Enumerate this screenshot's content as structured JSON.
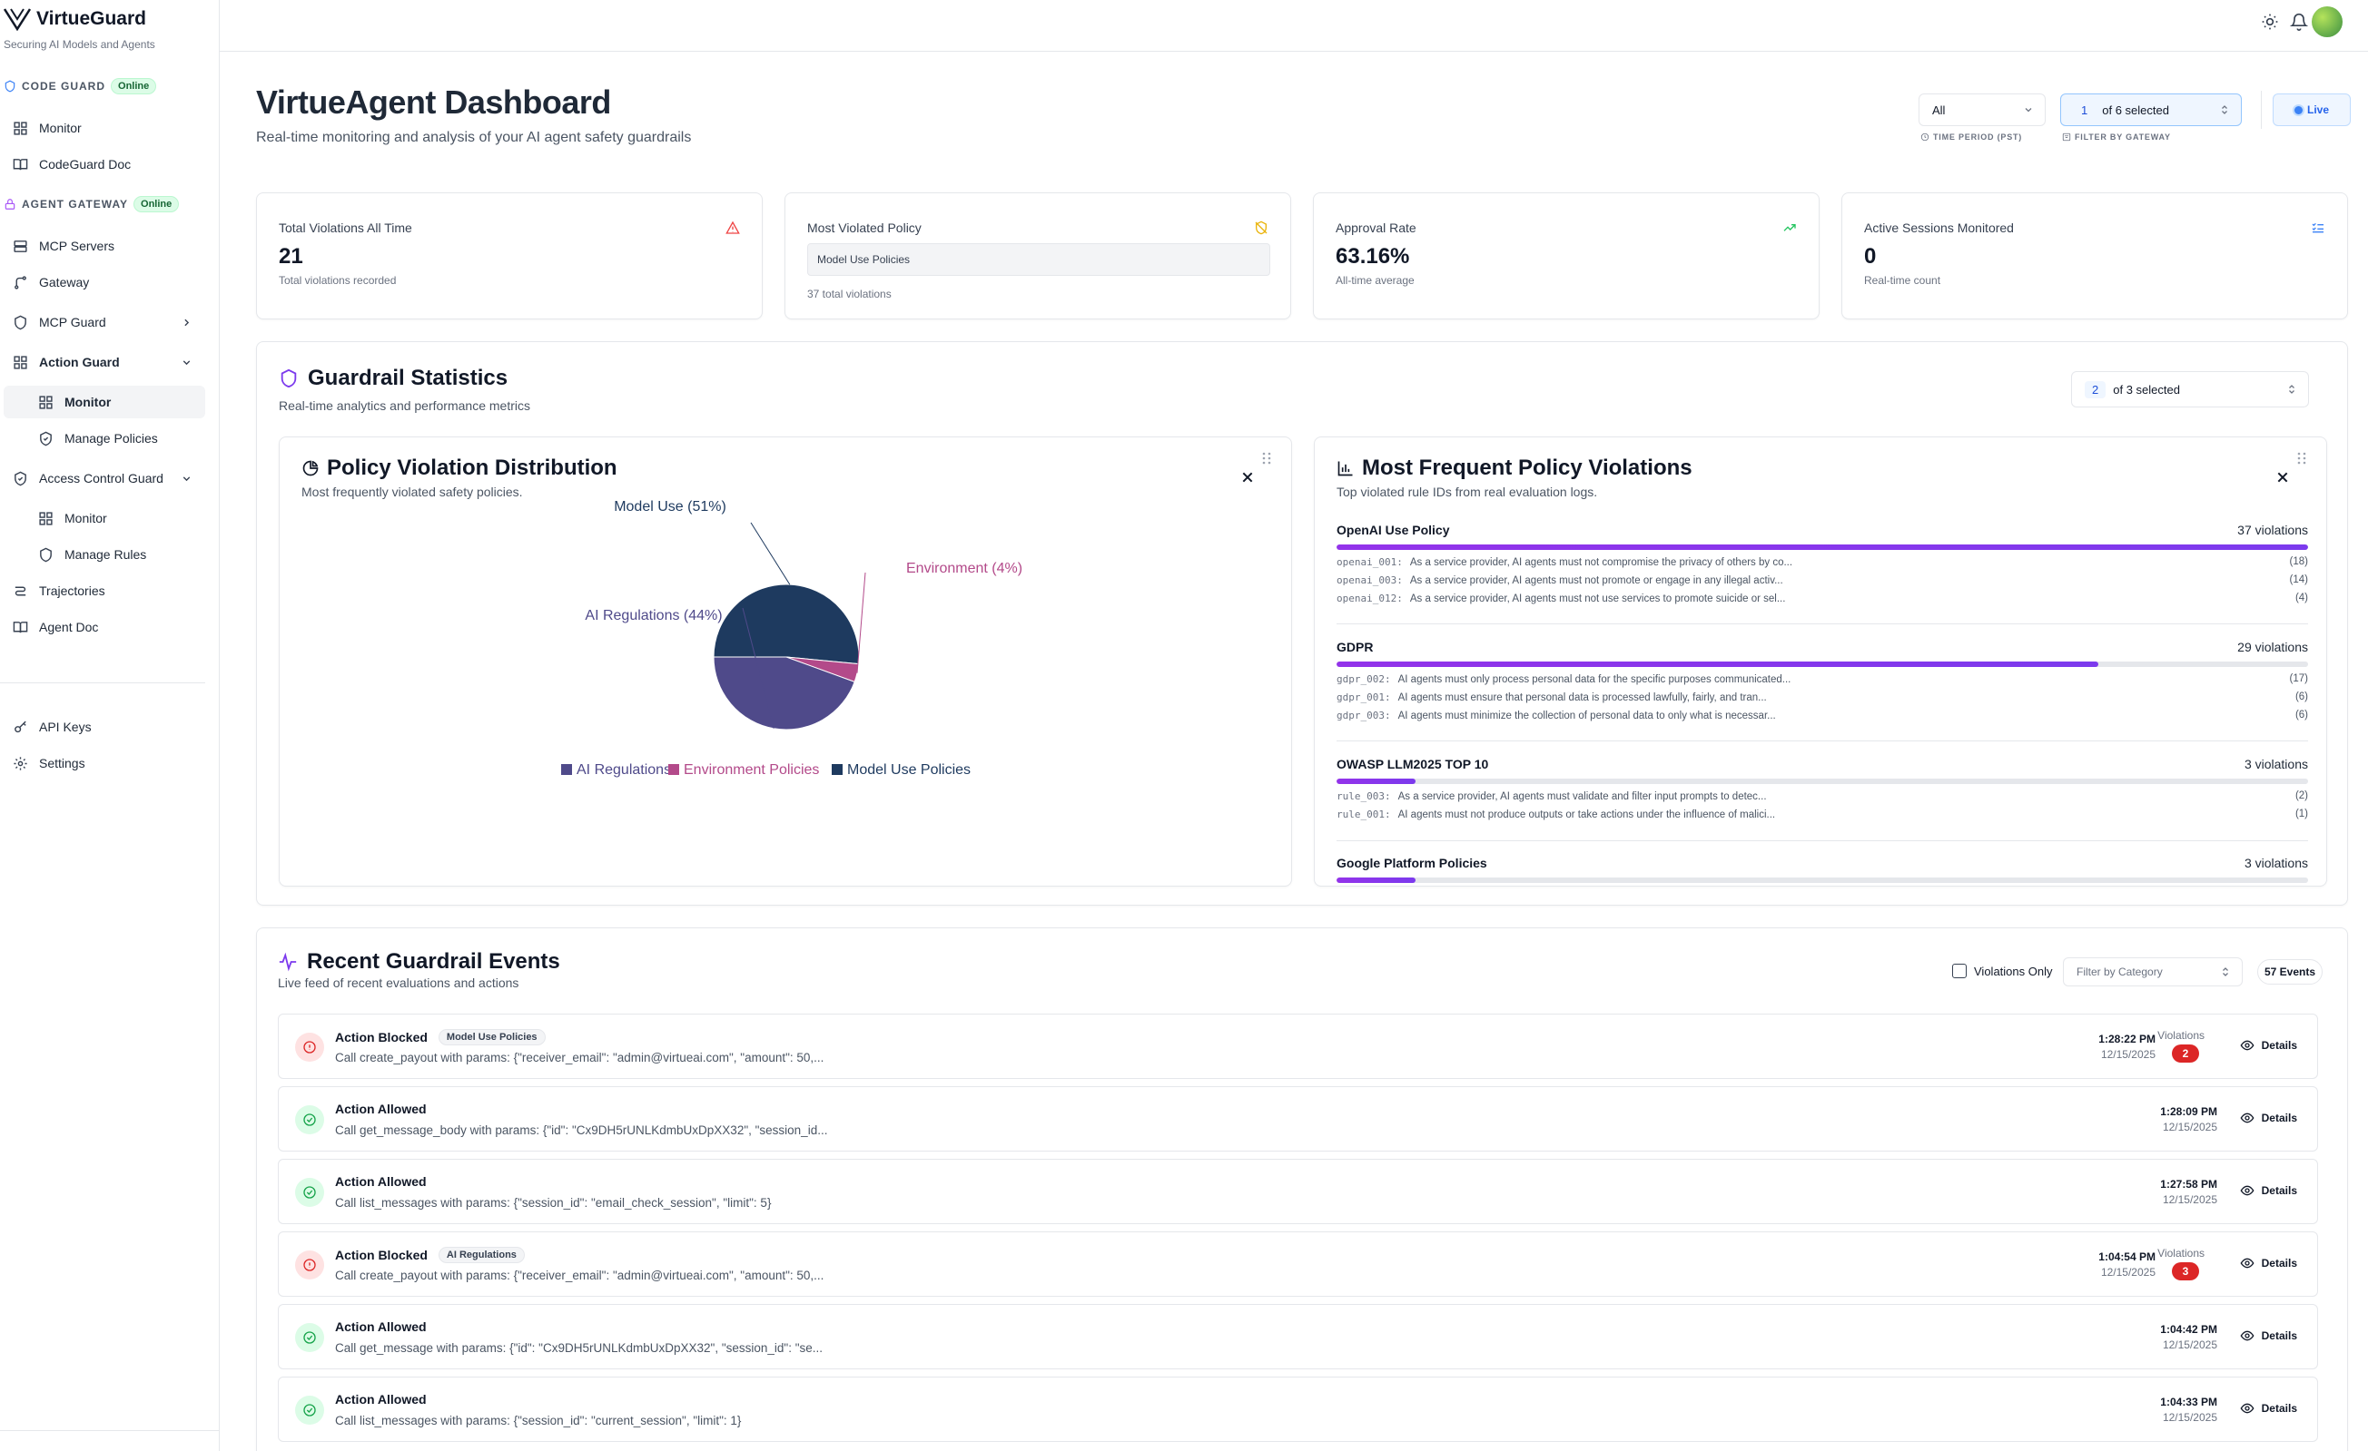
{
  "app": {
    "name": "VirtueGuard",
    "tagline": "Securing AI Models and Agents"
  },
  "sidebar": {
    "code_guard": {
      "label": "CODE GUARD",
      "status": "Online",
      "items": [
        {
          "label": "Monitor",
          "icon": "grid-icon"
        },
        {
          "label": "CodeGuard Doc",
          "icon": "book-icon"
        }
      ]
    },
    "agent_gateway": {
      "label": "AGENT GATEWAY",
      "status": "Online"
    },
    "items": {
      "mcp_servers": "MCP Servers",
      "gateway": "Gateway",
      "mcp_guard": "MCP Guard",
      "action_guard": "Action Guard",
      "action_guard_monitor": "Monitor",
      "action_guard_manage": "Manage Policies",
      "access_control": "Access Control Guard",
      "access_monitor": "Monitor",
      "access_manage": "Manage Rules",
      "trajectories": "Trajectories",
      "agent_doc": "Agent Doc",
      "api_keys": "API Keys",
      "settings": "Settings"
    }
  },
  "header": {
    "title": "VirtueAgent Dashboard",
    "subtitle": "Real-time monitoring and analysis of your AI agent safety guardrails",
    "time_period": {
      "value": "All",
      "label": "TIME PERIOD (PST)"
    },
    "gateway_filter": {
      "count": "1",
      "text": "of 6 selected",
      "label": "FILTER BY GATEWAY"
    },
    "live_label": "Live"
  },
  "stats": [
    {
      "label": "Total Violations All Time",
      "value": "21",
      "note": "Total violations recorded",
      "icon": "alert-triangle-icon",
      "color": "#ef4444"
    },
    {
      "label": "Most Violated Policy",
      "pill": "Model Use Policies",
      "note": "37 total violations",
      "icon": "shield-off-icon",
      "color": "#eab308"
    },
    {
      "label": "Approval Rate",
      "value": "63.16%",
      "note": "All-time average",
      "icon": "trending-up-icon",
      "color": "#22c55e"
    },
    {
      "label": "Active Sessions Monitored",
      "value": "0",
      "note": "Real-time count",
      "icon": "list-check-icon",
      "color": "#3b82f6"
    }
  ],
  "guardrail": {
    "title": "Guardrail Statistics",
    "subtitle": "Real-time analytics and performance metrics",
    "selector": {
      "count": "2",
      "text": "of 3 selected"
    }
  },
  "distribution": {
    "title": "Policy Violation Distribution",
    "subtitle": "Most frequently violated safety policies."
  },
  "chart_data": {
    "type": "pie",
    "title": "Policy Violation Distribution",
    "slices": [
      {
        "name": "Model Use Policies",
        "label": "Model Use (51%)",
        "value": 51,
        "color": "#1e3a5f"
      },
      {
        "name": "Environment Policies",
        "label": "Environment (4%)",
        "value": 4,
        "color": "#b34a8a"
      },
      {
        "name": "AI Regulations",
        "label": "AI Regulations (44%)",
        "value": 44,
        "color": "#4f4a8a"
      }
    ],
    "legend": [
      {
        "name": "AI Regulations",
        "color": "#4f4a8a"
      },
      {
        "name": "Environment Policies",
        "color": "#b34a8a"
      },
      {
        "name": "Model Use Policies",
        "color": "#1e3a5f"
      }
    ],
    "legend_position": "bottom"
  },
  "frequent": {
    "title": "Most Frequent Policy Violations",
    "subtitle": "Top violated rule IDs from real evaluation logs.",
    "policies": [
      {
        "name": "OpenAI Use Policy",
        "count": "37 violations",
        "fill": 1.0,
        "rules": [
          {
            "id": "openai_001:",
            "text": "As a service provider, AI agents must not compromise the privacy of others by co...",
            "n": "(18)"
          },
          {
            "id": "openai_003:",
            "text": "As a service provider, AI agents must not promote or engage in any illegal activ...",
            "n": "(14)"
          },
          {
            "id": "openai_012:",
            "text": "As a service provider, AI agents must not use services to promote suicide or sel...",
            "n": "(4)"
          }
        ]
      },
      {
        "name": "GDPR",
        "count": "29 violations",
        "fill": 0.784,
        "rules": [
          {
            "id": "gdpr_002:",
            "text": "AI agents must only process personal data for the specific purposes communicated...",
            "n": "(17)"
          },
          {
            "id": "gdpr_001:",
            "text": "AI agents must ensure that personal data is processed lawfully, fairly, and tran...",
            "n": "(6)"
          },
          {
            "id": "gdpr_003:",
            "text": "AI agents must minimize the collection of personal data to only what is necessar...",
            "n": "(6)"
          }
        ]
      },
      {
        "name": "OWASP LLM2025 TOP 10",
        "count": "3 violations",
        "fill": 0.081,
        "rules": [
          {
            "id": "rule_003:",
            "text": "As a service provider, AI agents must validate and filter input prompts to detec...",
            "n": "(2)"
          },
          {
            "id": "rule_001:",
            "text": "AI agents must not produce outputs or take actions under the influence of malici...",
            "n": "(1)"
          }
        ]
      },
      {
        "name": "Google Platform Policies",
        "count": "3 violations",
        "fill": 0.081,
        "rules": []
      }
    ]
  },
  "events": {
    "title": "Recent Guardrail Events",
    "subtitle": "Live feed of recent evaluations and actions",
    "violations_only": "Violations Only",
    "filter_placeholder": "Filter by Category",
    "count": "57 Events",
    "violations_label": "Violations",
    "details_label": "Details",
    "items": [
      {
        "status": "blocked",
        "title": "Action Blocked",
        "tag": "Model Use Policies",
        "desc": "Call create_payout with params: {\"receiver_email\": \"admin@virtueai.com\", \"amount\": 50,...",
        "time": "1:28:22 PM",
        "date": "12/15/2025",
        "violations": "2"
      },
      {
        "status": "allowed",
        "title": "Action Allowed",
        "tag": "",
        "desc": "Call get_message_body with params: {\"id\": \"Cx9DH5rUNLKdmbUxDpXX32\", \"session_id...",
        "time": "1:28:09 PM",
        "date": "12/15/2025",
        "violations": ""
      },
      {
        "status": "allowed",
        "title": "Action Allowed",
        "tag": "",
        "desc": "Call list_messages with params: {\"session_id\": \"email_check_session\", \"limit\": 5}",
        "time": "1:27:58 PM",
        "date": "12/15/2025",
        "violations": ""
      },
      {
        "status": "blocked",
        "title": "Action Blocked",
        "tag": "AI Regulations",
        "desc": "Call create_payout with params: {\"receiver_email\": \"admin@virtueai.com\", \"amount\": 50,...",
        "time": "1:04:54 PM",
        "date": "12/15/2025",
        "violations": "3"
      },
      {
        "status": "allowed",
        "title": "Action Allowed",
        "tag": "",
        "desc": "Call get_message with params: {\"id\": \"Cx9DH5rUNLKdmbUxDpXX32\", \"session_id\": \"se...",
        "time": "1:04:42 PM",
        "date": "12/15/2025",
        "violations": ""
      },
      {
        "status": "allowed",
        "title": "Action Allowed",
        "tag": "",
        "desc": "Call list_messages with params: {\"session_id\": \"current_session\", \"limit\": 1}",
        "time": "1:04:33 PM",
        "date": "12/15/2025",
        "violations": ""
      }
    ]
  }
}
